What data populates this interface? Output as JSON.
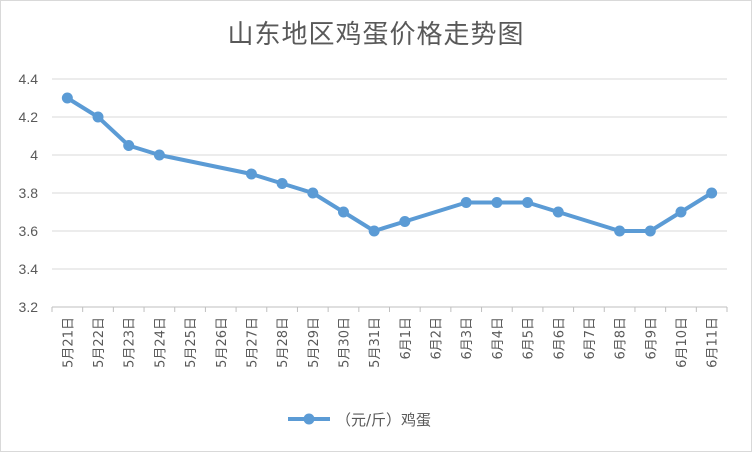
{
  "chart_data": {
    "type": "line",
    "title": "山东地区鸡蛋价格走势图",
    "categories": [
      "5月21日",
      "5月22日",
      "5月23日",
      "5月24日",
      "5月25日",
      "5月26日",
      "5月27日",
      "5月28日",
      "5月29日",
      "5月30日",
      "5月31日",
      "6月1日",
      "6月2日",
      "6月3日",
      "6月4日",
      "6月5日",
      "6月6日",
      "6月7日",
      "6月8日",
      "6月9日",
      "6月10日",
      "6月11日"
    ],
    "series": [
      {
        "name": "（元/斤）鸡蛋",
        "values": [
          4.3,
          4.2,
          4.05,
          4.0,
          null,
          null,
          3.9,
          3.85,
          3.8,
          3.7,
          3.6,
          3.65,
          null,
          3.75,
          3.75,
          3.75,
          3.7,
          null,
          3.6,
          3.6,
          3.7,
          3.8
        ],
        "color": "#5b9bd5"
      }
    ],
    "ylim": [
      3.2,
      4.4
    ],
    "yticks": [
      "3.2",
      "3.4",
      "3.6",
      "3.8",
      "4",
      "4.2",
      "4.4"
    ],
    "xlabel": "",
    "ylabel": "",
    "grid": true,
    "legend": "bottom"
  }
}
